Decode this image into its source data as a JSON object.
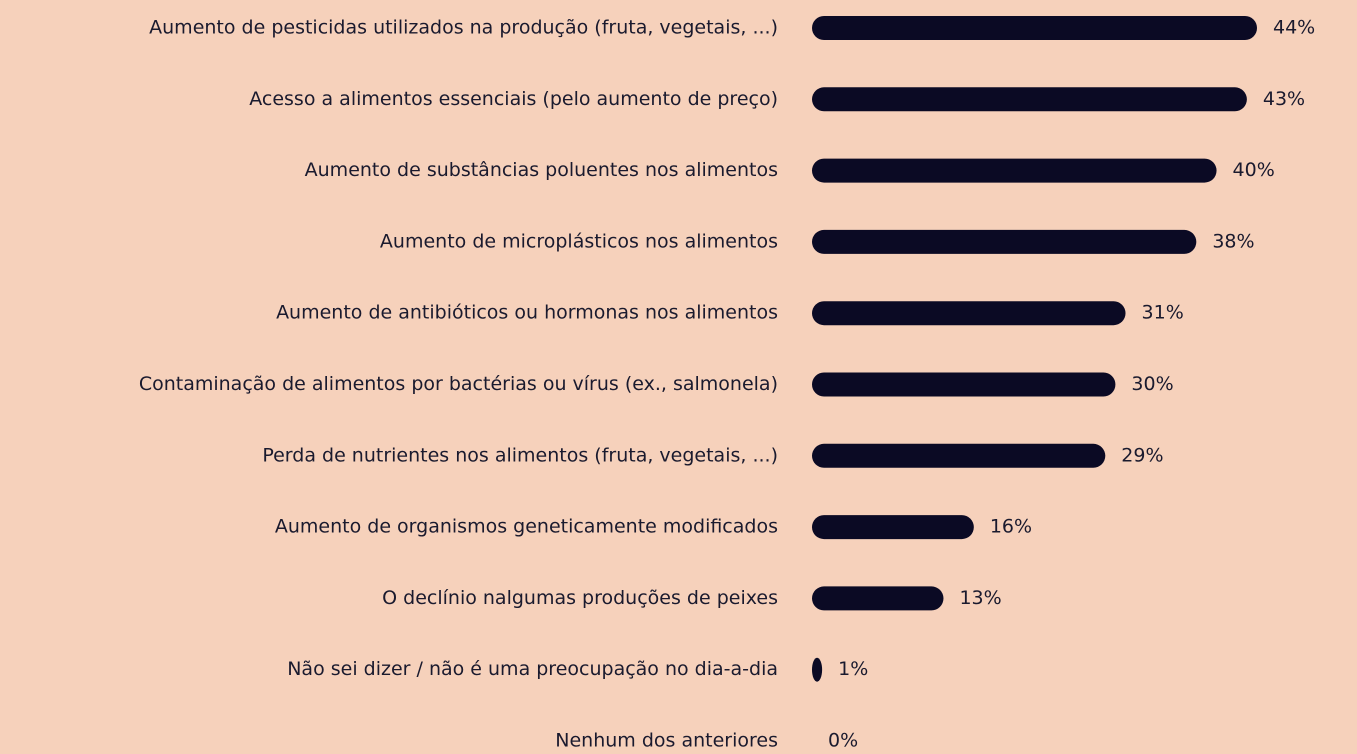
{
  "chart_data": {
    "type": "bar",
    "orientation": "horizontal",
    "categories": [
      "Aumento de pesticidas utilizados na produção (fruta, vegetais, ...)",
      "Acesso a alimentos essenciais (pelo aumento de preço)",
      "Aumento de substâncias poluentes nos alimentos",
      "Aumento de microplásticos nos alimentos",
      "Aumento de antibióticos ou hormonas nos alimentos",
      "Contaminação de alimentos por bactérias ou vírus (ex., salmonela)",
      "Perda de nutrientes nos alimentos (fruta, vegetais, ...)",
      "Aumento de organismos geneticamente modificados",
      "O declínio nalgumas produções de peixes",
      "Não sei dizer / não é uma preocupação no dia-a-dia",
      "Nenhum dos anteriores"
    ],
    "values": [
      44,
      43,
      40,
      38,
      31,
      30,
      29,
      16,
      13,
      1,
      0
    ],
    "value_labels": [
      "44%",
      "43%",
      "40%",
      "38%",
      "31%",
      "30%",
      "29%",
      "16%",
      "13%",
      "1%",
      "0%"
    ],
    "color": "#0b0a24"
  }
}
